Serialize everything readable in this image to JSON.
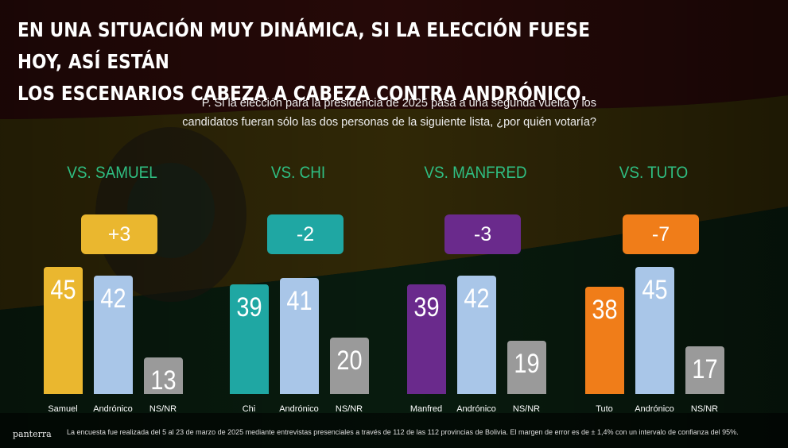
{
  "title_line1": "EN UNA SITUACIÓN MUY DINÁMICA, SI LA ELECCIÓN FUESE HOY, ASÍ ESTÁN",
  "title_line2": "LOS ESCENARIOS CABEZA A CABEZA CONTRA ANDRÓNICO.",
  "question_line1": "P. Si la elección para la presidencia de 2025 pasa a una segunda vuelta y los",
  "question_line2": "candidatos fueran sólo las dos personas de la siguiente lista, ¿por quién votaría?",
  "logo": "panterra",
  "footnote": "La encuesta fue realizada del 5 al 23 de marzo de 2025 mediante entrevistas presenciales a través de 112 de las 112 provincias de Bolivia. El margen de error es de ± 1,4% con un intervalo de confianza del 95%.",
  "colors": {
    "group_label": "#2fbf83",
    "andronico": "#a9c6e8",
    "nsnr": "#9a9a9a",
    "samuel": "#eab72f",
    "chi": "#1fa7a3",
    "manfred": "#6a2a8c",
    "tuto": "#f07d19"
  },
  "chart_data": {
    "type": "bar",
    "groups": [
      {
        "label": "VS. SAMUEL",
        "diff": "+3",
        "color": "#eab72f",
        "categories": [
          "Samuel",
          "Andrónico",
          "NS/NR"
        ],
        "values": [
          45,
          42,
          13
        ]
      },
      {
        "label": "VS. CHI",
        "diff": "-2",
        "color": "#1fa7a3",
        "categories": [
          "Chi",
          "Andrónico",
          "NS/NR"
        ],
        "values": [
          39,
          41,
          20
        ]
      },
      {
        "label": "VS. MANFRED",
        "diff": "-3",
        "color": "#6a2a8c",
        "categories": [
          "Manfred",
          "Andrónico",
          "NS/NR"
        ],
        "values": [
          39,
          42,
          19
        ]
      },
      {
        "label": "VS. TUTO",
        "diff": "-7",
        "color": "#f07d19",
        "categories": [
          "Tuto",
          "Andrónico",
          "NS/NR"
        ],
        "values": [
          38,
          45,
          17
        ]
      }
    ]
  }
}
